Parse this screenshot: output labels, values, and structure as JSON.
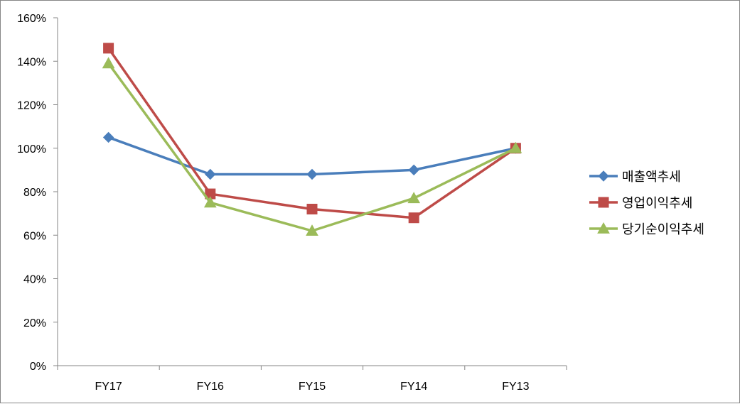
{
  "chart_data": {
    "type": "line",
    "title": "",
    "xlabel": "",
    "ylabel": "",
    "categories": [
      "FY17",
      "FY16",
      "FY15",
      "FY14",
      "FY13"
    ],
    "ylim": [
      0,
      160
    ],
    "yticks": [
      0,
      20,
      40,
      60,
      80,
      100,
      120,
      140,
      160
    ],
    "ytick_labels": [
      "0%",
      "20%",
      "40%",
      "60%",
      "80%",
      "100%",
      "120%",
      "140%",
      "160%"
    ],
    "grid": false,
    "legend_position": "right",
    "series": [
      {
        "name": "매출액추세",
        "values": [
          105,
          88,
          88,
          90,
          100
        ],
        "color": "#4a7ebb",
        "marker": "diamond"
      },
      {
        "name": "영업이익추세",
        "values": [
          146,
          79,
          72,
          68,
          100
        ],
        "color": "#be4b48",
        "marker": "square"
      },
      {
        "name": "당기순이익추세",
        "values": [
          139,
          75,
          62,
          77,
          100
        ],
        "color": "#9bbb59",
        "marker": "triangle"
      }
    ]
  }
}
